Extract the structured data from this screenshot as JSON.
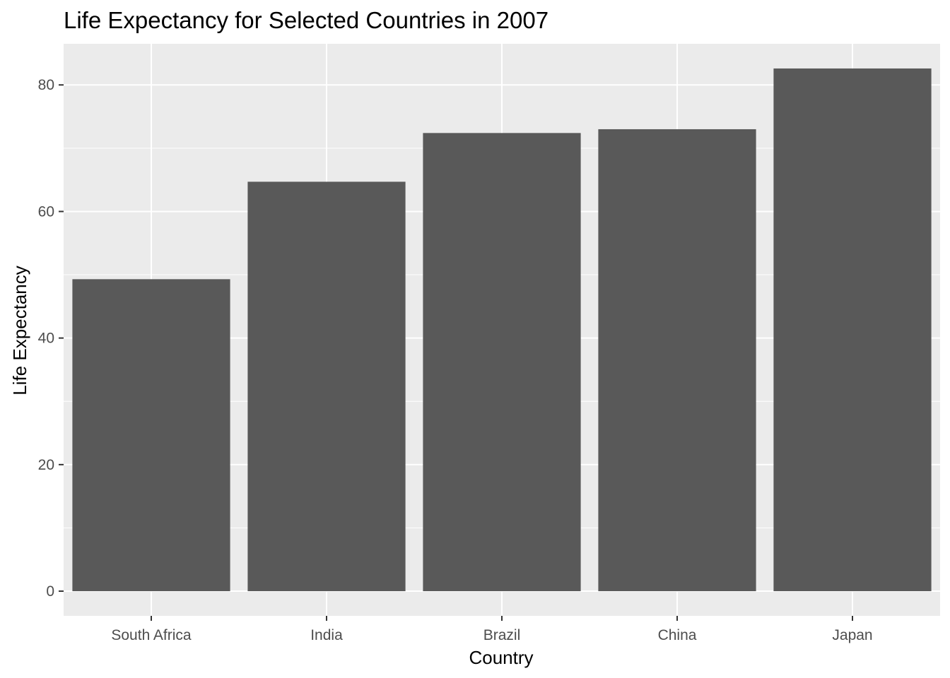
{
  "chart_data": {
    "type": "bar",
    "title": "Life Expectancy for Selected Countries in 2007",
    "xlabel": "Country",
    "ylabel": "Life Expectancy",
    "categories": [
      "South Africa",
      "India",
      "Brazil",
      "China",
      "Japan"
    ],
    "values": [
      49.3,
      64.7,
      72.4,
      73.0,
      82.6
    ],
    "ylim": [
      -3.9,
      86.5
    ],
    "yticks": [
      0,
      20,
      40,
      60,
      80
    ],
    "ytick_labels": [
      "0",
      "20",
      "40",
      "60",
      "80"
    ],
    "grid": true,
    "legend": "none",
    "colors": {
      "bar": "#595959",
      "panel": "#ebebeb",
      "grid": "#ffffff",
      "tick": "#333333",
      "tick_label": "#4d4d4d"
    }
  }
}
